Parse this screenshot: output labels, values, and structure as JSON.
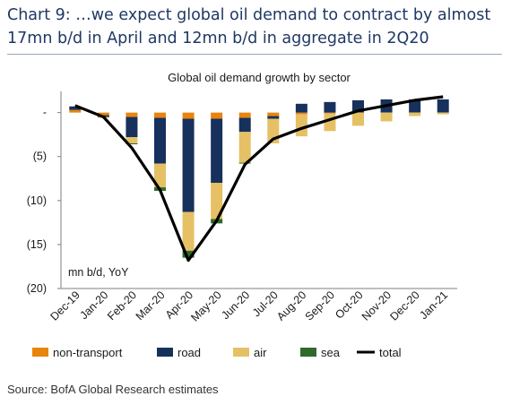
{
  "heading": {
    "line1": "Chart 9: …we expect global oil demand to contract by almost",
    "line2": "17mn b/d in April and 12mn b/d in aggregate in 2Q20"
  },
  "source": "Source: BofA Global Research estimates",
  "colors": {
    "non_transport": "#e8850f",
    "road": "#17315c",
    "air": "#e6c064",
    "sea": "#2f6a2c",
    "total": "#000000"
  },
  "chart_data": {
    "type": "bar",
    "stacked": true,
    "title": "Global oil demand growth by sector",
    "annotation": "mn b/d, YoY",
    "ylim": [
      -20,
      2
    ],
    "yticks": [
      {
        "value": 0,
        "label": "-"
      },
      {
        "value": -5,
        "label": "(5)"
      },
      {
        "value": -10,
        "label": "(10)"
      },
      {
        "value": -15,
        "label": "(15)"
      },
      {
        "value": -20,
        "label": "(20)"
      }
    ],
    "categories": [
      "Dec-19",
      "Jan-20",
      "Feb-20",
      "Mar-20",
      "Apr-20",
      "May-20",
      "Jun-20",
      "Jul-20",
      "Aug-20",
      "Sep-20",
      "Oct-20",
      "Nov-20",
      "Dec-20",
      "Jan-21"
    ],
    "series": [
      {
        "name": "non-transport",
        "key": "non_transport",
        "kind": "bar",
        "values": [
          0.3,
          -0.3,
          -0.5,
          -0.6,
          -0.7,
          -0.7,
          -0.6,
          -0.4,
          -0.2,
          -0.1,
          0.0,
          0.0,
          0.0,
          0.0
        ]
      },
      {
        "name": "road",
        "key": "road",
        "kind": "bar",
        "values": [
          0.4,
          -0.2,
          -2.3,
          -5.2,
          -10.6,
          -7.3,
          -1.6,
          -0.3,
          1.0,
          1.2,
          1.4,
          1.5,
          1.5,
          1.5
        ]
      },
      {
        "name": "air",
        "key": "air",
        "kind": "bar",
        "values": [
          0.0,
          -0.1,
          -0.7,
          -2.7,
          -4.4,
          -4.1,
          -3.5,
          -2.8,
          -2.5,
          -2.0,
          -1.5,
          -1.0,
          -0.4,
          -0.2
        ]
      },
      {
        "name": "sea",
        "key": "sea",
        "kind": "bar",
        "values": [
          0.0,
          0.0,
          -0.1,
          -0.4,
          -0.8,
          -0.5,
          -0.1,
          0.0,
          0.0,
          0.0,
          0.0,
          0.0,
          0.0,
          0.0
        ]
      },
      {
        "name": "total",
        "key": "total",
        "kind": "line",
        "values": [
          0.8,
          -0.5,
          -4.0,
          -8.8,
          -16.8,
          -12.3,
          -5.9,
          -3.0,
          -1.8,
          -0.8,
          0.2,
          0.8,
          1.4,
          1.8
        ]
      }
    ]
  }
}
